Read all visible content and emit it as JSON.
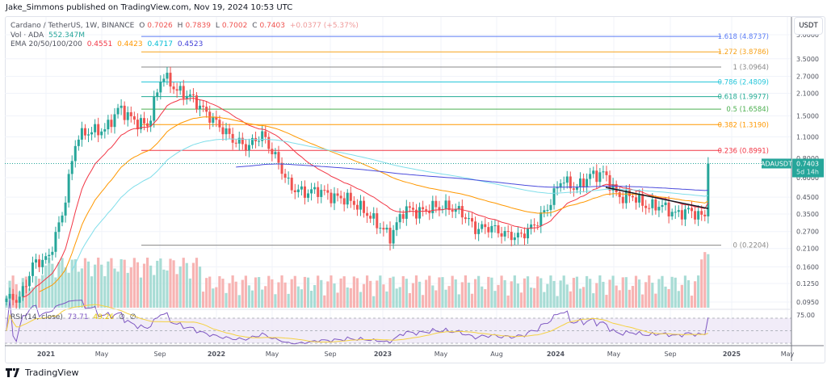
{
  "publisher_line": "Jake_Simmons published on TradingView.com, Nov 19, 2024 10:53 UTC",
  "symbol_line": {
    "name": "Cardano / TetherUS, 1W, BINANCE",
    "o_label": "O",
    "o": "0.7026",
    "h_label": "H",
    "h": "0.7839",
    "l_label": "L",
    "l": "0.7002",
    "c_label": "C",
    "c": "0.7403",
    "change": "+0.0377 (+5.37%)"
  },
  "volume_line": {
    "label": "Vol · ADA",
    "value": "552.347M"
  },
  "ema_line": {
    "label": "EMA 20/50/100/200",
    "v20": "0.4551",
    "v50": "0.4423",
    "v100": "0.4717",
    "v200": "0.4523"
  },
  "rsi_line": {
    "label": "RSI (14, close)",
    "rsi": "73.71",
    "ma": "49.26",
    "icon1": "∅",
    "icon2": "∅"
  },
  "currency_button": "USDT",
  "price_tag": {
    "symbol": "ADAUSDT",
    "price": "0.7403",
    "countdown": "5d 14h"
  },
  "logo_text": "TradingView",
  "colors": {
    "up": "#26a69a",
    "down": "#ef5350",
    "ema20": "#f23645",
    "ema50": "#ff9800",
    "ema100": "#80deea",
    "ema200": "#4b4bdc",
    "rsi": "#7e57c2",
    "rsi_ma": "#f5d142"
  },
  "chart_data": {
    "type": "candlestick",
    "symbol": "ADAUSDT",
    "interval": "1W",
    "scale": "log",
    "y_ticks": [
      "5.0000",
      "3.5000",
      "2.7000",
      "2.1000",
      "1.5000",
      "1.1000",
      "0.8000",
      "0.6000",
      "0.4500",
      "0.3500",
      "0.2700",
      "0.2100",
      "0.1600",
      "0.1250",
      "0.0950"
    ],
    "rsi_ticks": [
      "75.00"
    ],
    "x_ticks": [
      "2021",
      "May",
      "Sep",
      "2022",
      "May",
      "Sep",
      "2023",
      "May",
      "Aug",
      "2024",
      "May",
      "Sep",
      "2025",
      "May"
    ],
    "monthly_closes": [
      {
        "month": "2020-10",
        "close": 0.1
      },
      {
        "month": "2020-11",
        "close": 0.17
      },
      {
        "month": "2020-12",
        "close": 0.18
      },
      {
        "month": "2021-01",
        "close": 0.35
      },
      {
        "month": "2021-02",
        "close": 1.1
      },
      {
        "month": "2021-03",
        "close": 1.2
      },
      {
        "month": "2021-04",
        "close": 1.22
      },
      {
        "month": "2021-05",
        "close": 1.7
      },
      {
        "month": "2021-06",
        "close": 1.4
      },
      {
        "month": "2021-07",
        "close": 1.3
      },
      {
        "month": "2021-08",
        "close": 2.8
      },
      {
        "month": "2021-09",
        "close": 2.2
      },
      {
        "month": "2021-10",
        "close": 2.0
      },
      {
        "month": "2021-11",
        "close": 1.6
      },
      {
        "month": "2021-12",
        "close": 1.3
      },
      {
        "month": "2022-01",
        "close": 1.05
      },
      {
        "month": "2022-02",
        "close": 0.95
      },
      {
        "month": "2022-03",
        "close": 1.15
      },
      {
        "month": "2022-04",
        "close": 0.8
      },
      {
        "month": "2022-05",
        "close": 0.52
      },
      {
        "month": "2022-06",
        "close": 0.48
      },
      {
        "month": "2022-07",
        "close": 0.5
      },
      {
        "month": "2022-08",
        "close": 0.45
      },
      {
        "month": "2022-09",
        "close": 0.44
      },
      {
        "month": "2022-10",
        "close": 0.38
      },
      {
        "month": "2022-11",
        "close": 0.31
      },
      {
        "month": "2022-12",
        "close": 0.25
      },
      {
        "month": "2023-01",
        "close": 0.38
      },
      {
        "month": "2023-02",
        "close": 0.36
      },
      {
        "month": "2023-03",
        "close": 0.39
      },
      {
        "month": "2023-04",
        "close": 0.39
      },
      {
        "month": "2023-05",
        "close": 0.36
      },
      {
        "month": "2023-06",
        "close": 0.28
      },
      {
        "month": "2023-07",
        "close": 0.29
      },
      {
        "month": "2023-08",
        "close": 0.26
      },
      {
        "month": "2023-09",
        "close": 0.25
      },
      {
        "month": "2023-10",
        "close": 0.29
      },
      {
        "month": "2023-11",
        "close": 0.38
      },
      {
        "month": "2023-12",
        "close": 0.59
      },
      {
        "month": "2024-01",
        "close": 0.51
      },
      {
        "month": "2024-02",
        "close": 0.62
      },
      {
        "month": "2024-03",
        "close": 0.64
      },
      {
        "month": "2024-04",
        "close": 0.45
      },
      {
        "month": "2024-05",
        "close": 0.46
      },
      {
        "month": "2024-06",
        "close": 0.39
      },
      {
        "month": "2024-07",
        "close": 0.4
      },
      {
        "month": "2024-08",
        "close": 0.35
      },
      {
        "month": "2024-09",
        "close": 0.37
      },
      {
        "month": "2024-10",
        "close": 0.33
      },
      {
        "month": "2024-11",
        "close": 0.7403
      }
    ],
    "fib_levels": [
      {
        "label": "1.618 (4.8737)",
        "price": 4.8737,
        "color": "#5b7cf5"
      },
      {
        "label": "1.272 (3.8786)",
        "price": 3.8786,
        "color": "#f7a21b"
      },
      {
        "label": "1 (3.0964)",
        "price": 3.0964,
        "color": "#888888"
      },
      {
        "label": "0.786 (2.4809)",
        "price": 2.4809,
        "color": "#26c6da"
      },
      {
        "label": "0.618 (1.9977)",
        "price": 1.9977,
        "color": "#22ab94"
      },
      {
        "label": "0.5 (1.6584)",
        "price": 1.6584,
        "color": "#4caf50"
      },
      {
        "label": "0.382 (1.3190)",
        "price": 1.319,
        "color": "#ff9800"
      },
      {
        "label": "0.236 (0.8991)",
        "price": 0.8991,
        "color": "#f23645"
      },
      {
        "label": "0 (0.2204)",
        "price": 0.2204,
        "color": "#888888"
      }
    ],
    "trendline": {
      "from": {
        "date": "2024-03",
        "price": 0.52
      },
      "to": {
        "date": "2024-11",
        "price": 0.38
      },
      "color": "#131722"
    }
  }
}
